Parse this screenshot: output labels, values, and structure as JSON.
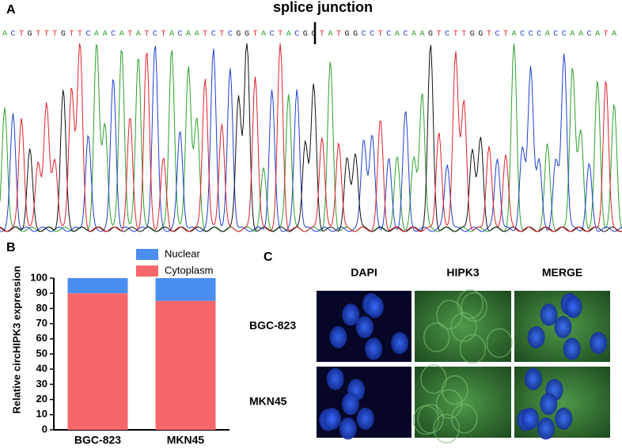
{
  "panel_a": {
    "label": "A",
    "title": "splice junction",
    "sequence": "ACTGTTTGTTCAACATATCTACAATCTCGGTACTACGGTATGGCCTCACAAGTCTTGGTCTACCCACCAACATA",
    "base_colors": {
      "A": "#2ca02c",
      "C": "#1f3fd0",
      "G": "#111111",
      "T": "#e0202a"
    }
  },
  "chart_data": {
    "type": "stacked-bar",
    "label": "B",
    "ylabel": "Relative circHIPK3 expression",
    "categories": [
      "BGC-823",
      "MKN45"
    ],
    "series": [
      {
        "name": "Nuclear",
        "color": "#4a8ef2",
        "values": [
          10,
          15
        ]
      },
      {
        "name": "Cytoplasm",
        "color": "#f7676a",
        "values": [
          90,
          85
        ]
      }
    ],
    "ylim": [
      0,
      100
    ],
    "yticks": [
      0,
      10,
      20,
      30,
      40,
      50,
      60,
      70,
      80,
      90,
      100
    ]
  },
  "panel_c": {
    "label": "C",
    "columns": [
      "DAPI",
      "HIPK3",
      "MERGE"
    ],
    "rows": [
      "BGC-823",
      "MKN45"
    ]
  }
}
